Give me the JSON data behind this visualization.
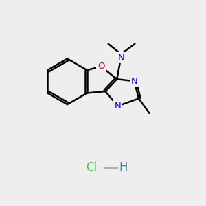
{
  "bg_color": "#eeeeee",
  "bond_color": "#000000",
  "bond_width": 1.8,
  "N_color": "#0000ee",
  "O_color": "#dd0000",
  "Cl_color": "#33cc33",
  "H_color": "#4d8899",
  "figsize": [
    3.0,
    3.0
  ],
  "dpi": 100,
  "xlim": [
    0,
    10
  ],
  "ylim": [
    0,
    10
  ]
}
